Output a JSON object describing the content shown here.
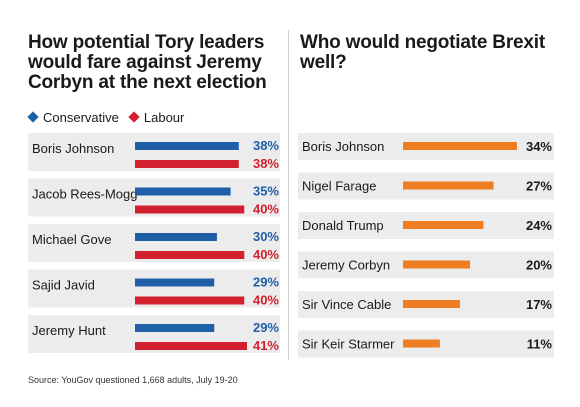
{
  "colors": {
    "conservative": "#1f5fa8",
    "labour": "#d3202f",
    "orange": "#ef7d22",
    "dark": "#1a1a1a",
    "row_bg": "#ececec"
  },
  "source": "Source: YouGov questioned 1,668 adults, July 19-20",
  "chart_data": [
    {
      "type": "bar",
      "title": "How potential Tory leaders would fare against Jeremy Corbyn at the next election",
      "orientation": "horizontal",
      "legend_position": "top-left",
      "categories": [
        "Boris Johnson",
        "Jacob Rees-Mogg",
        "Michael Gove",
        "Sajid Javid",
        "Jeremy Hunt"
      ],
      "series": [
        {
          "name": "Conservative",
          "values": [
            38,
            35,
            30,
            29,
            29
          ],
          "labels": [
            "38%",
            "35%",
            "30%",
            "29%",
            "29%"
          ],
          "color": "#1f5fa8"
        },
        {
          "name": "Labour",
          "values": [
            38,
            40,
            40,
            40,
            41
          ],
          "labels": [
            "38%",
            "40%",
            "40%",
            "40%",
            "41%"
          ],
          "color": "#d3202f"
        }
      ],
      "xlim": [
        0,
        41
      ]
    },
    {
      "type": "bar",
      "title": "Who would negotiate Brexit well?",
      "orientation": "horizontal",
      "categories": [
        "Boris Johnson",
        "Nigel Farage",
        "Donald Trump",
        "Jeremy Corbyn",
        "Sir Vince Cable",
        "Sir Keir Starmer"
      ],
      "values": [
        34,
        27,
        24,
        20,
        17,
        11
      ],
      "labels": [
        "34%",
        "27%",
        "24%",
        "20%",
        "17%",
        "11%"
      ],
      "color": "#ef7d22",
      "xlim": [
        0,
        34
      ]
    }
  ]
}
